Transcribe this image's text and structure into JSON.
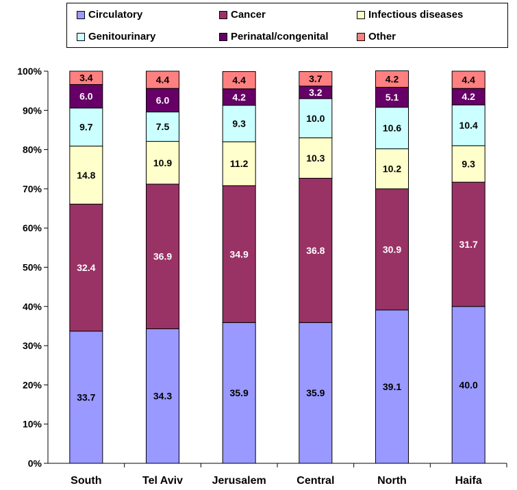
{
  "chart_data": {
    "type": "bar",
    "stacked": true,
    "categories": [
      "South",
      "Tel Aviv",
      "Jerusalem",
      "Central",
      "North",
      "Haifa"
    ],
    "series": [
      {
        "name": "Circulatory",
        "color": "#9999ff",
        "label_color": "#000000",
        "values": [
          33.7,
          34.3,
          35.9,
          35.9,
          39.1,
          40.0
        ]
      },
      {
        "name": "Cancer",
        "color": "#993366",
        "label_color": "#ffffff",
        "values": [
          32.4,
          36.9,
          34.9,
          36.8,
          30.9,
          31.7
        ]
      },
      {
        "name": "Infectious diseases",
        "color": "#ffffcc",
        "label_color": "#000000",
        "values": [
          14.8,
          10.9,
          11.2,
          10.3,
          10.2,
          9.3
        ]
      },
      {
        "name": "Genitourinary",
        "color": "#ccffff",
        "label_color": "#000000",
        "values": [
          9.7,
          7.5,
          9.3,
          10.0,
          10.6,
          10.4
        ]
      },
      {
        "name": "Perinatal/congenital",
        "color": "#660066",
        "label_color": "#ffffff",
        "values": [
          6.0,
          6.0,
          4.2,
          3.2,
          5.1,
          4.2
        ]
      },
      {
        "name": "Other",
        "color": "#ff8080",
        "label_color": "#000000",
        "values": [
          3.4,
          4.4,
          4.4,
          3.7,
          4.2,
          4.4
        ]
      }
    ],
    "y_ticks": [
      "0%",
      "10%",
      "20%",
      "30%",
      "40%",
      "50%",
      "60%",
      "70%",
      "80%",
      "90%",
      "100%"
    ],
    "ylim": [
      0,
      100
    ],
    "legend_position": "top",
    "grid": false
  }
}
